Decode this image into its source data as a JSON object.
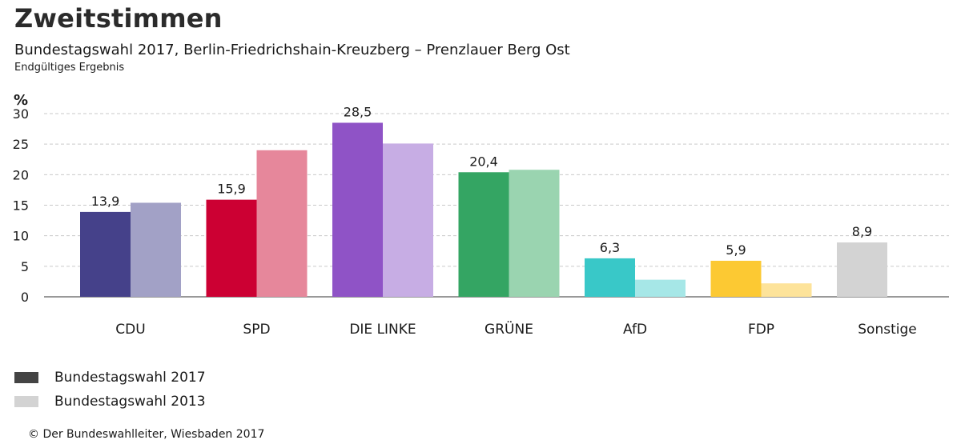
{
  "header": {
    "title": "Zweitstimmen",
    "subtitle": "Bundestagswahl 2017, Berlin-Friedrichshain-Kreuzberg – Prenzlauer Berg Ost",
    "note": "Endgültiges Ergebnis"
  },
  "footer": {
    "credit": "© Der Bundeswahlleiter, Wiesbaden 2017"
  },
  "chart_data": {
    "type": "bar",
    "ylabel": "%",
    "ylim": [
      0,
      30
    ],
    "yticks": [
      0,
      5,
      10,
      15,
      20,
      25,
      30
    ],
    "grid": true,
    "legend_position": "bottom-left",
    "categories": [
      "CDU",
      "SPD",
      "DIE LINKE",
      "GRÜNE",
      "AfD",
      "FDP",
      "Sonstige"
    ],
    "series": [
      {
        "name": "Bundestagswahl 2017",
        "values": [
          13.9,
          15.9,
          28.5,
          20.4,
          6.3,
          5.9,
          8.9
        ],
        "labels": [
          "13,9",
          "15,9",
          "28,5",
          "20,4",
          "6,3",
          "5,9",
          "8,9"
        ],
        "colors": [
          "#45418a",
          "#cc0033",
          "#8f53c6",
          "#34a563",
          "#39c8c8",
          "#fcc933",
          "#d3d3d3"
        ]
      },
      {
        "name": "Bundestagswahl 2013",
        "values": [
          15.4,
          24.0,
          25.1,
          20.8,
          2.8,
          2.2,
          null
        ],
        "colors": [
          "#a2a1c6",
          "#e6879b",
          "#c7ade4",
          "#9ad4b0",
          "#a6e7e7",
          "#fde39a",
          "#ebebeb"
        ]
      }
    ],
    "legend_colors": [
      "#444444",
      "#d3d3d3"
    ]
  }
}
